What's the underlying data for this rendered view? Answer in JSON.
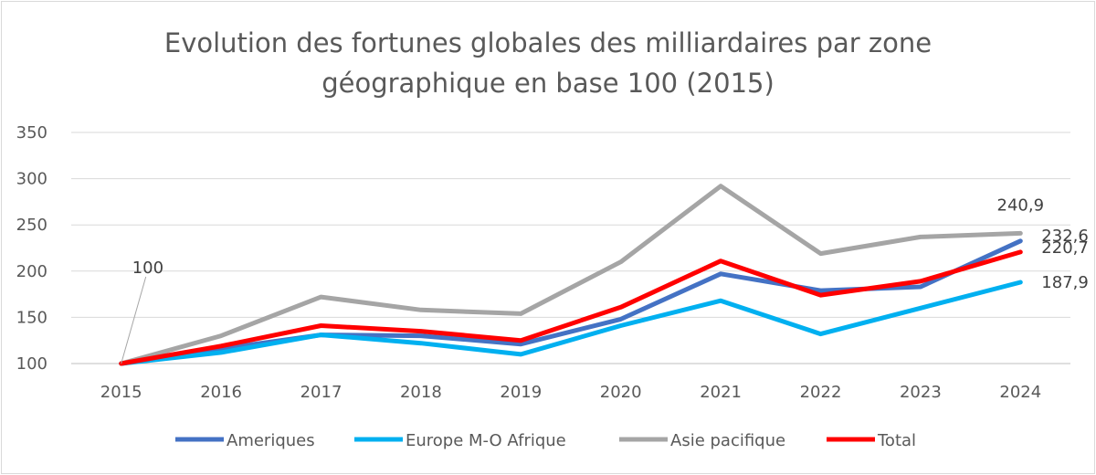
{
  "chart_data": {
    "type": "line",
    "title_lines": [
      "Evolution des fortunes globales des milliardaires par zone",
      "géographique en base 100 (2015)"
    ],
    "x": [
      "2015",
      "2016",
      "2017",
      "2018",
      "2019",
      "2020",
      "2021",
      "2022",
      "2023",
      "2024"
    ],
    "ylim": [
      100,
      350
    ],
    "yticks": [
      100,
      150,
      200,
      250,
      300,
      350
    ],
    "grid": true,
    "legend_position": "bottom",
    "series": [
      {
        "name": "Ameriques",
        "color": "#4472C4",
        "values": [
          100,
          116,
          131,
          130,
          121,
          148,
          197,
          179,
          183,
          232.6
        ]
      },
      {
        "name": "Europe M-O Afrique",
        "color": "#00B0F0",
        "values": [
          100,
          112,
          131,
          122,
          110,
          141,
          168,
          132,
          160,
          187.9
        ]
      },
      {
        "name": "Asie pacifique",
        "color": "#A5A5A5",
        "values": [
          100,
          130,
          172,
          158,
          154,
          210,
          292,
          219,
          237,
          240.9
        ]
      },
      {
        "name": "Total",
        "color": "#FF0000",
        "values": [
          100,
          119,
          141,
          135,
          125,
          161,
          211,
          174,
          189,
          220.7
        ]
      }
    ],
    "data_labels": [
      {
        "series": "Asie pacifique",
        "index": 0,
        "text": "100"
      },
      {
        "series": "Asie pacifique",
        "index": 9,
        "text": "240,9"
      },
      {
        "series": "Ameriques",
        "index": 9,
        "text": "232,6"
      },
      {
        "series": "Total",
        "index": 9,
        "text": "220,7"
      },
      {
        "series": "Europe M-O Afrique",
        "index": 9,
        "text": "187,9"
      }
    ]
  }
}
